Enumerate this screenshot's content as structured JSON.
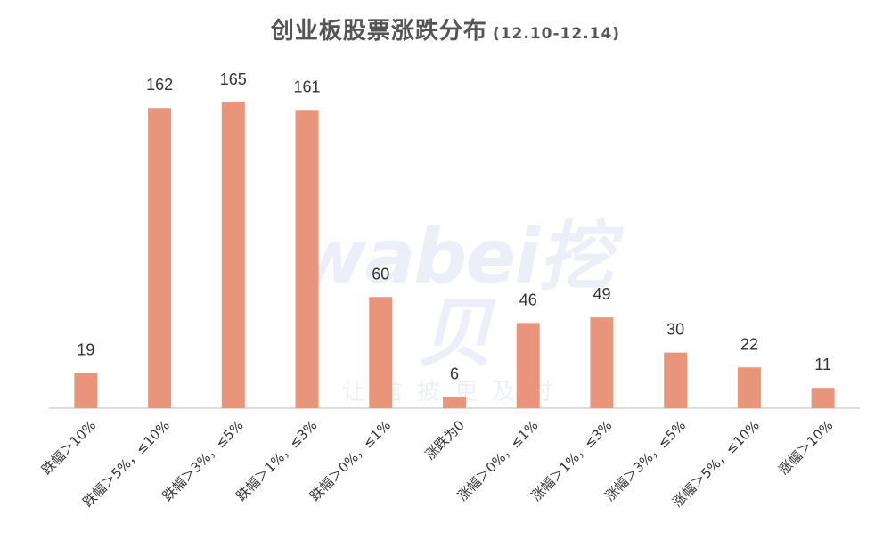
{
  "title": "创业板股票涨跌分布",
  "subtitle": "(12.10-12.14)",
  "watermark": {
    "main": "wabei挖贝",
    "sub": "让信披更及时"
  },
  "colors": {
    "bar": "#E8957C",
    "axis": "#d0d0d0",
    "label": "#333333"
  },
  "chart_data": {
    "type": "bar",
    "title": "创业板股票涨跌分布",
    "subtitle": "(12.10-12.14)",
    "categories": [
      "跌幅＞10%",
      "跌幅＞5%，≤10%",
      "跌幅＞3%，≤5%",
      "跌幅＞1%，≤3%",
      "跌幅＞0%，≤1%",
      "涨跌为0",
      "涨幅＞0%，≤1%",
      "涨幅＞1%，≤3%",
      "涨幅＞3%，≤5%",
      "涨幅＞5%，≤10%",
      "涨幅＞10%"
    ],
    "values": [
      19,
      162,
      165,
      161,
      60,
      6,
      46,
      49,
      30,
      22,
      11
    ],
    "data_labels": true,
    "grid": false,
    "legend": "none",
    "ylim": [
      0,
      165
    ]
  }
}
